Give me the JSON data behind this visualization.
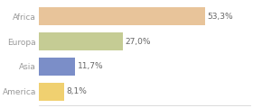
{
  "categories": [
    "Africa",
    "Europa",
    "Asia",
    "America"
  ],
  "values": [
    53.3,
    27.0,
    11.7,
    8.1
  ],
  "labels": [
    "53,3%",
    "27,0%",
    "11,7%",
    "8,1%"
  ],
  "bar_colors": [
    "#e8c49a",
    "#c5cc94",
    "#7b8ec8",
    "#f0d070"
  ],
  "xlim": [
    0,
    68
  ],
  "background_color": "#ffffff",
  "text_color": "#999999",
  "label_fontsize": 6.5,
  "tick_fontsize": 6.5,
  "bar_height": 0.72
}
